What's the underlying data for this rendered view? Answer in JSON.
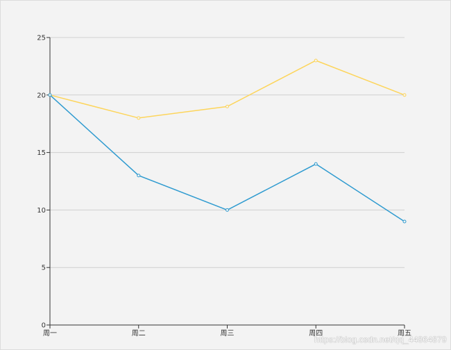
{
  "chart_data": {
    "type": "line",
    "categories": [
      "周一",
      "周二",
      "周三",
      "周四",
      "周五"
    ],
    "series": [
      {
        "values": [
          20,
          13,
          10,
          14,
          9
        ],
        "color": "#2f9bd0"
      },
      {
        "values": [
          20,
          18,
          19,
          23,
          20
        ],
        "color": "#fdd55b"
      }
    ],
    "ylim": [
      0,
      25
    ],
    "yticks": [
      0,
      5,
      10,
      15,
      20,
      25
    ],
    "grid": true,
    "legend": "none",
    "title": "",
    "xlabel": "",
    "ylabel": ""
  },
  "colors": {
    "background": "#f3f3f3",
    "grid": "#d0d0d0",
    "axis": "#333333"
  },
  "watermark": "https://blog.csdn.net/qq_44864879"
}
